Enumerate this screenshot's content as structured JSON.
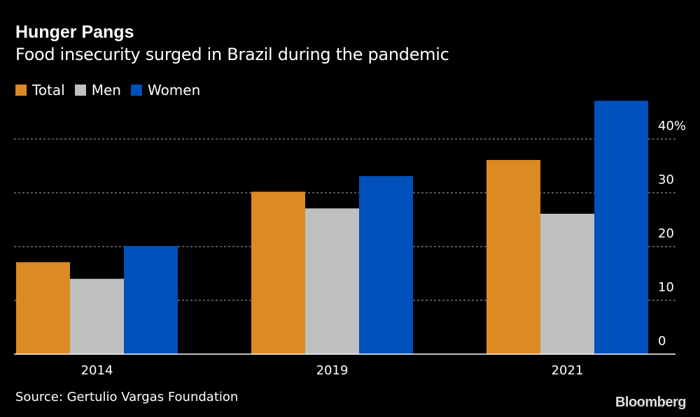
{
  "title": "Hunger Pangs",
  "subtitle": "Food insecurity surged in Brazil during the pandemic",
  "source": "Source: Gertulio Vargas Foundation",
  "logo": "Bloomberg",
  "chart_data": {
    "type": "bar",
    "categories": [
      "2014",
      "2019",
      "2021"
    ],
    "series": [
      {
        "name": "Total",
        "color": "#db8a24",
        "values": [
          17.1,
          30.2,
          36.1
        ]
      },
      {
        "name": "Men",
        "color": "#c0c0c0",
        "values": [
          14.0,
          27.1,
          26.1
        ]
      },
      {
        "name": "Women",
        "color": "#0050bb",
        "values": [
          20.1,
          33.1,
          47.1
        ]
      }
    ],
    "ylim": [
      0,
      47.5
    ],
    "yticks": [
      0,
      10,
      20,
      30,
      40
    ],
    "ytick_labels": [
      "0",
      "10",
      "20",
      "30",
      "40%"
    ],
    "y_axis_side": "right",
    "grid": true,
    "legend": "top-left"
  }
}
